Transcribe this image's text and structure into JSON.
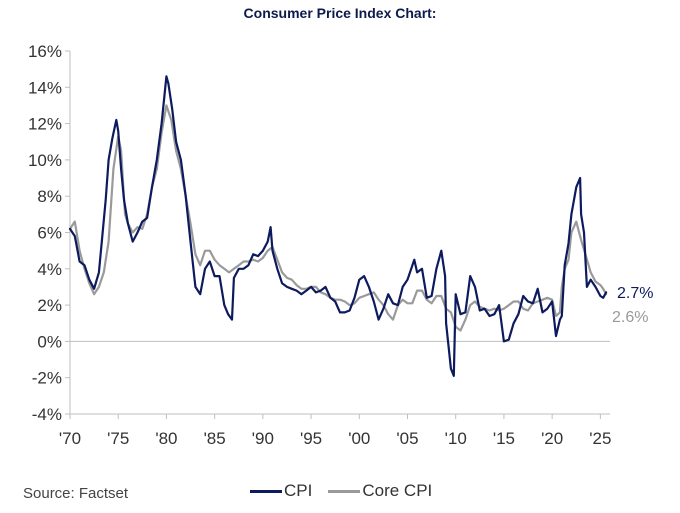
{
  "title": "Consumer Price Index Chart:",
  "source": "Source: Factset",
  "colors": {
    "cpi": "#0d1b5e",
    "core": "#9a9a9a",
    "axis": "#bfbfbf"
  },
  "chart_data": {
    "type": "line",
    "ylim": [
      -4,
      16
    ],
    "xlim": [
      1970,
      2025.6
    ],
    "yticks": [
      -4,
      -2,
      0,
      2,
      4,
      6,
      8,
      10,
      12,
      14,
      16
    ],
    "ytick_labels": [
      "-4%",
      "-2%",
      "0%",
      "2%",
      "4%",
      "6%",
      "8%",
      "10%",
      "12%",
      "14%",
      "16%"
    ],
    "xticks": [
      1970,
      1975,
      1980,
      1985,
      1990,
      1995,
      2000,
      2005,
      2010,
      2015,
      2020,
      2025
    ],
    "xtick_labels": [
      "'70",
      "'75",
      "'80",
      "'85",
      "'90",
      "'95",
      "'00",
      "'05",
      "'10",
      "'15",
      "'20",
      "'25"
    ],
    "legend_position": "bottom",
    "grid": false,
    "series": [
      {
        "name": "CPI",
        "end_label": "2.7%",
        "x": [
          1970,
          1970.5,
          1971,
          1971.5,
          1972,
          1972.5,
          1973,
          1973.3,
          1973.7,
          1974,
          1974.4,
          1974.8,
          1975,
          1975.3,
          1975.6,
          1976,
          1976.5,
          1977,
          1977.5,
          1978,
          1978.5,
          1979,
          1979.5,
          1980,
          1980.2,
          1980.6,
          1981,
          1981.5,
          1982,
          1982.5,
          1983,
          1983.5,
          1984,
          1984.5,
          1985,
          1985.5,
          1986,
          1986.4,
          1986.8,
          1987,
          1987.5,
          1988,
          1988.5,
          1989,
          1989.5,
          1990,
          1990.5,
          1990.8,
          1991,
          1991.5,
          1992,
          1992.5,
          1993,
          1993.5,
          1994,
          1994.5,
          1995,
          1995.5,
          1996,
          1996.5,
          1997,
          1997.5,
          1998,
          1998.5,
          1999,
          1999.5,
          2000,
          2000.5,
          2001,
          2001.5,
          2002,
          2002.5,
          2003,
          2003.5,
          2004,
          2004.5,
          2005,
          2005.7,
          2006,
          2006.5,
          2007,
          2007.5,
          2008,
          2008.5,
          2008.9,
          2009,
          2009.3,
          2009.5,
          2009.8,
          2010,
          2010.5,
          2011,
          2011.5,
          2012,
          2012.5,
          2013,
          2013.5,
          2014,
          2014.5,
          2015,
          2015.5,
          2016,
          2016.5,
          2017,
          2017.5,
          2018,
          2018.5,
          2019,
          2019.5,
          2020,
          2020.4,
          2020.8,
          2021,
          2021.3,
          2021.7,
          2022,
          2022.5,
          2022.9,
          2023,
          2023.3,
          2023.6,
          2024,
          2024.5,
          2025,
          2025.3,
          2025.6
        ],
        "y": [
          6.2,
          5.8,
          4.4,
          4.2,
          3.4,
          2.9,
          3.8,
          5.5,
          7.8,
          10.0,
          11.2,
          12.2,
          11.6,
          9.5,
          7.8,
          6.5,
          5.5,
          6.0,
          6.6,
          6.8,
          8.5,
          10.0,
          12.0,
          14.6,
          14.2,
          12.8,
          11.0,
          10.0,
          8.0,
          5.5,
          3.0,
          2.6,
          4.0,
          4.4,
          3.6,
          3.6,
          2.0,
          1.5,
          1.2,
          3.5,
          4.0,
          4.0,
          4.2,
          4.8,
          4.7,
          5.0,
          5.5,
          6.3,
          5.0,
          4.0,
          3.2,
          3.0,
          2.9,
          2.8,
          2.6,
          2.8,
          3.0,
          2.7,
          2.8,
          3.0,
          2.4,
          2.2,
          1.6,
          1.6,
          1.7,
          2.4,
          3.4,
          3.6,
          3.0,
          2.2,
          1.2,
          1.8,
          2.6,
          2.1,
          2.0,
          3.0,
          3.4,
          4.5,
          3.8,
          4.0,
          2.4,
          2.5,
          4.0,
          5.0,
          3.6,
          1.0,
          -0.5,
          -1.5,
          -1.9,
          2.6,
          1.5,
          1.6,
          3.6,
          3.0,
          1.7,
          1.8,
          1.4,
          1.5,
          2.0,
          0.0,
          0.1,
          1.0,
          1.5,
          2.5,
          2.2,
          2.1,
          2.9,
          1.6,
          1.8,
          2.2,
          0.3,
          1.2,
          1.4,
          4.2,
          5.4,
          7.0,
          8.5,
          9.0,
          7.0,
          6.0,
          3.0,
          3.4,
          3.0,
          2.5,
          2.4,
          2.7
        ]
      },
      {
        "name": "Core CPI",
        "end_label": "2.6%",
        "x": [
          1970,
          1970.5,
          1971,
          1971.5,
          1972,
          1972.5,
          1973,
          1973.5,
          1974,
          1974.5,
          1975,
          1975.3,
          1975.7,
          1976,
          1976.5,
          1977,
          1977.5,
          1978,
          1978.5,
          1979,
          1979.5,
          1980,
          1980.5,
          1981,
          1981.5,
          1982,
          1982.5,
          1983,
          1983.5,
          1984,
          1984.5,
          1985,
          1985.5,
          1986,
          1986.5,
          1987,
          1987.5,
          1988,
          1988.5,
          1989,
          1989.5,
          1990,
          1990.5,
          1991,
          1991.5,
          1992,
          1992.5,
          1993,
          1993.5,
          1994,
          1994.5,
          1995,
          1995.5,
          1996,
          1996.5,
          1997,
          1997.5,
          1998,
          1998.5,
          1999,
          1999.5,
          2000,
          2000.5,
          2001,
          2001.5,
          2002,
          2002.5,
          2003,
          2003.5,
          2004,
          2004.5,
          2005,
          2005.5,
          2006,
          2006.5,
          2007,
          2007.5,
          2008,
          2008.5,
          2009,
          2009.5,
          2010,
          2010.5,
          2011,
          2011.5,
          2012,
          2012.5,
          2013,
          2013.5,
          2014,
          2014.5,
          2015,
          2015.5,
          2016,
          2016.5,
          2017,
          2017.5,
          2018,
          2018.5,
          2019,
          2019.5,
          2020,
          2020.4,
          2020.8,
          2021,
          2021.3,
          2021.7,
          2022,
          2022.5,
          2022.8,
          2023,
          2023.5,
          2024,
          2024.5,
          2025,
          2025.3,
          2025.6
        ],
        "y": [
          6.2,
          6.6,
          5.0,
          4.0,
          3.2,
          2.6,
          3.0,
          3.8,
          5.5,
          9.5,
          11.3,
          10.5,
          7.0,
          6.5,
          6.0,
          6.3,
          6.2,
          7.0,
          8.5,
          9.5,
          11.5,
          13.0,
          12.2,
          10.5,
          9.5,
          8.0,
          6.5,
          4.8,
          4.2,
          5.0,
          5.0,
          4.5,
          4.2,
          4.0,
          3.8,
          4.0,
          4.2,
          4.4,
          4.4,
          4.5,
          4.4,
          4.6,
          5.0,
          5.2,
          4.5,
          3.8,
          3.5,
          3.4,
          3.1,
          2.9,
          2.9,
          3.0,
          3.0,
          2.7,
          2.6,
          2.4,
          2.3,
          2.3,
          2.2,
          2.0,
          2.1,
          2.4,
          2.5,
          2.6,
          2.7,
          2.3,
          2.0,
          1.5,
          1.2,
          2.0,
          2.3,
          2.1,
          2.1,
          2.8,
          2.8,
          2.3,
          2.1,
          2.5,
          2.5,
          1.8,
          1.6,
          0.8,
          0.6,
          1.2,
          2.0,
          2.2,
          1.9,
          1.8,
          1.7,
          1.8,
          1.7,
          1.8,
          2.0,
          2.2,
          2.2,
          1.8,
          1.7,
          2.1,
          2.2,
          2.3,
          2.4,
          2.3,
          1.4,
          1.6,
          3.0,
          4.0,
          4.5,
          6.0,
          6.6,
          6.0,
          5.6,
          4.7,
          3.8,
          3.3,
          3.1,
          2.9,
          2.6
        ]
      }
    ]
  }
}
